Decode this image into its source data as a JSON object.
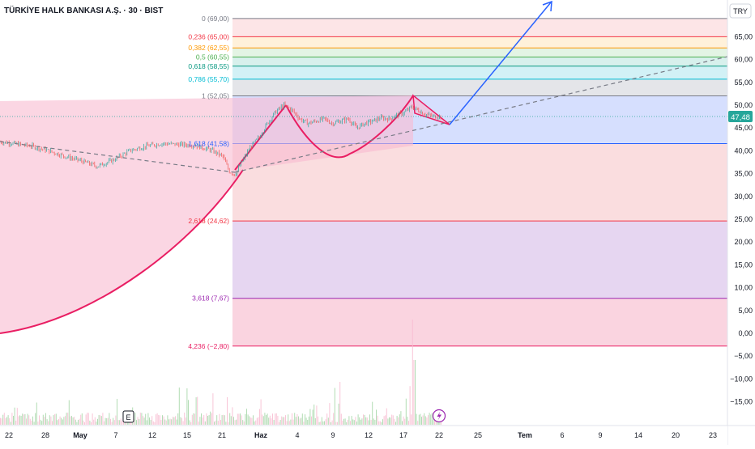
{
  "header": {
    "title": "TÜRKİYE HALK BANKASI A.Ş. · 30 · BIST",
    "currency": "TRY"
  },
  "icons": {
    "earnings": "E",
    "dividend": "lightning-icon"
  },
  "colors": {
    "up": "#26a69a",
    "down": "#ef5350",
    "arrow": "#2962ff",
    "cup": "#e91e63",
    "trend": "#787b86"
  },
  "chart_data": {
    "type": "candlestick",
    "title": "TÜRKİYE HALK BANKASI A.Ş. · 30 · BIST",
    "currency": "TRY",
    "last_price": 47.48,
    "last_price_label": "47,48",
    "y_axis": {
      "range": [
        -17.5,
        72
      ],
      "ticks": [
        {
          "v": 65,
          "label": "65,00"
        },
        {
          "v": 60,
          "label": "60,00"
        },
        {
          "v": 55,
          "label": "55,00"
        },
        {
          "v": 50,
          "label": "50,00"
        },
        {
          "v": 45,
          "label": "45,00"
        },
        {
          "v": 40,
          "label": "40,00"
        },
        {
          "v": 35,
          "label": "35,00"
        },
        {
          "v": 30,
          "label": "30,00"
        },
        {
          "v": 25,
          "label": "25,00"
        },
        {
          "v": 20,
          "label": "20,00"
        },
        {
          "v": 15,
          "label": "15,00"
        },
        {
          "v": 10,
          "label": "10,00"
        },
        {
          "v": 5,
          "label": "5,00"
        },
        {
          "v": 0,
          "label": "0,00"
        },
        {
          "v": -5,
          "label": "−5,00"
        },
        {
          "v": -10,
          "label": "−10,00"
        },
        {
          "v": -15,
          "label": "−15,00"
        }
      ]
    },
    "x_axis": {
      "ticks": [
        {
          "label": "22",
          "bold": false
        },
        {
          "label": "28",
          "bold": false
        },
        {
          "label": "May",
          "bold": true
        },
        {
          "label": "7",
          "bold": false
        },
        {
          "label": "12",
          "bold": false
        },
        {
          "label": "15",
          "bold": false
        },
        {
          "label": "21",
          "bold": false
        },
        {
          "label": "Haz",
          "bold": true
        },
        {
          "label": "4",
          "bold": false
        },
        {
          "label": "9",
          "bold": false
        },
        {
          "label": "12",
          "bold": false
        },
        {
          "label": "17",
          "bold": false
        },
        {
          "label": "22",
          "bold": false
        },
        {
          "label": "25",
          "bold": false
        },
        {
          "label": "Tem",
          "bold": true
        },
        {
          "label": "6",
          "bold": false
        },
        {
          "label": "9",
          "bold": false
        },
        {
          "label": "14",
          "bold": false
        },
        {
          "label": "20",
          "bold": false
        },
        {
          "label": "23",
          "bold": false
        }
      ]
    },
    "fib_levels": [
      {
        "ratio": "0",
        "price": 69.0,
        "label": "0 (69,00)",
        "color": "#787b86"
      },
      {
        "ratio": "0.236",
        "price": 65.0,
        "label": "0,236 (65,00)",
        "color": "#f23645"
      },
      {
        "ratio": "0.382",
        "price": 62.55,
        "label": "0,382 (62,55)",
        "color": "#ff9800"
      },
      {
        "ratio": "0.5",
        "price": 60.55,
        "label": "0,5 (60,55)",
        "color": "#4caf50"
      },
      {
        "ratio": "0.618",
        "price": 58.55,
        "label": "0,618 (58,55)",
        "color": "#089981"
      },
      {
        "ratio": "0.786",
        "price": 55.7,
        "label": "0,786 (55,70)",
        "color": "#00bcd4"
      },
      {
        "ratio": "1",
        "price": 52.05,
        "label": "1 (52,05)",
        "color": "#787b86"
      },
      {
        "ratio": "1.618",
        "price": 41.58,
        "label": "1,618 (41,58)",
        "color": "#2962ff"
      },
      {
        "ratio": "2.618",
        "price": 24.62,
        "label": "2,618 (24,62)",
        "color": "#f23645"
      },
      {
        "ratio": "3.618",
        "price": 7.67,
        "label": "3,618 (7,67)",
        "color": "#9c27b0"
      },
      {
        "ratio": "4.236",
        "price": -2.8,
        "label": "4,236 (−2,80)",
        "color": "#e91e63"
      }
    ],
    "price_path": [
      [
        0,
        42.0
      ],
      [
        20,
        41.5
      ],
      [
        40,
        41.0
      ],
      [
        60,
        40.0
      ],
      [
        80,
        38.8
      ],
      [
        100,
        37.8
      ],
      [
        120,
        36.6
      ],
      [
        140,
        38.0
      ],
      [
        160,
        40.0
      ],
      [
        180,
        41.0
      ],
      [
        200,
        41.6
      ],
      [
        220,
        41.4
      ],
      [
        240,
        41.2
      ],
      [
        260,
        40.2
      ],
      [
        275,
        38.8
      ],
      [
        283,
        35.5
      ],
      [
        290,
        34.8
      ],
      [
        300,
        38.0
      ],
      [
        310,
        41.0
      ],
      [
        320,
        43.0
      ],
      [
        330,
        46.0
      ],
      [
        340,
        48.5
      ],
      [
        350,
        50.0
      ],
      [
        360,
        49.0
      ],
      [
        370,
        47.0
      ],
      [
        380,
        46.0
      ],
      [
        390,
        46.5
      ],
      [
        400,
        47.0
      ],
      [
        410,
        46.0
      ],
      [
        420,
        46.5
      ],
      [
        430,
        47.0
      ],
      [
        440,
        45.0
      ],
      [
        450,
        46.0
      ],
      [
        460,
        46.5
      ],
      [
        470,
        47.2
      ],
      [
        480,
        47.0
      ],
      [
        490,
        47.8
      ],
      [
        500,
        48.5
      ],
      [
        508,
        49.6
      ],
      [
        515,
        49.0
      ],
      [
        525,
        48.0
      ],
      [
        535,
        47.5
      ],
      [
        545,
        47.6
      ]
    ]
  }
}
